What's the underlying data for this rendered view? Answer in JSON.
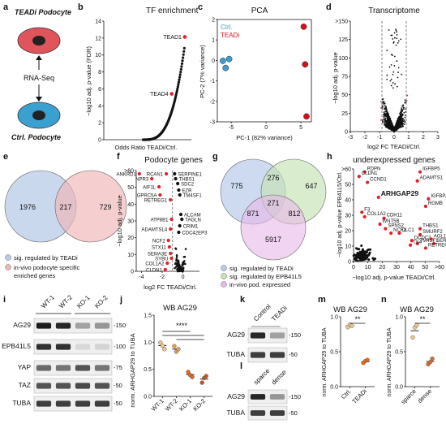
{
  "panels": {
    "a": {
      "letter": "a",
      "top_label": [
        "TEADi Podocyte"
      ],
      "middle_label": "RNA-Seq",
      "bottom_label": [
        "Ctrl. Podocyte"
      ],
      "colors": {
        "teadi": "#e0555c",
        "ctrl": "#3aa0d0",
        "nucleus": "#222222"
      }
    },
    "b": {
      "letter": "b",
      "title": "TF enrichment"
    },
    "c": {
      "letter": "c",
      "title": "PCA"
    },
    "d": {
      "letter": "d",
      "title": "Transcriptome"
    },
    "e": {
      "letter": "e",
      "left_value": "1976",
      "overlap_value": "217",
      "right_value": "729",
      "legend": [
        "sig. regulated by TEADi",
        "in-vivo podocyte specific",
        "enriched genes"
      ],
      "colors": {
        "left": "#b8cbe8",
        "right": "#f0b6b6"
      }
    },
    "f": {
      "letter": "f",
      "title": "Podocyte genes"
    },
    "g": {
      "letter": "g",
      "values": {
        "a_only": "775",
        "ab": "276",
        "b_only": "647",
        "ac": "871",
        "abc": "271",
        "bc": "812",
        "c_only": "5917"
      },
      "legend": [
        "sig. regulated by TEADi",
        "sig. regulated by EPB41L5",
        "in-vivo pod. expressed"
      ],
      "colors": {
        "a": "#b8cbe8",
        "b": "#c6e2b4",
        "c": "#e8b8ea"
      }
    },
    "h": {
      "letter": "h",
      "title": "underexpressed genes"
    },
    "i": {
      "letter": "i",
      "lanes": [
        "WT-1",
        "WT-2",
        "KO-1",
        "KO-2"
      ],
      "blots": [
        {
          "label": "AG29",
          "marker": "-150"
        },
        {
          "label": "EPB41L5",
          "marker": "-100"
        },
        {
          "label": "YAP",
          "marker": "-75"
        },
        {
          "label": "TAZ",
          "marker": "-50"
        },
        {
          "label": "TUBA",
          "marker": "-50"
        }
      ]
    },
    "j": {
      "letter": "j",
      "title": "WB AG29",
      "significance": "****"
    },
    "k": {
      "letter": "k",
      "lanes": [
        "Control",
        "TEADi"
      ],
      "blots": [
        {
          "label": "AG29",
          "marker": "-150"
        },
        {
          "label": "TUBA",
          "marker": "-50"
        }
      ]
    },
    "l": {
      "letter": "l",
      "lanes": [
        "sparce",
        "dense"
      ],
      "blots": [
        {
          "label": "AG29",
          "marker": "-150"
        },
        {
          "label": "TUBA",
          "marker": "-50"
        }
      ]
    },
    "m": {
      "letter": "m",
      "title": "WB AG29",
      "significance": "**"
    },
    "n": {
      "letter": "n",
      "title": "WB AG29",
      "significance": "**"
    }
  },
  "chart_data": [
    {
      "panel": "b",
      "type": "scatter",
      "title": "TF enrichment",
      "xlabel": "Odds Ratio TEADi/Ctrl.",
      "ylabel": "−log10 adj. p-value (FDR)",
      "yticks": [
        "0",
        "2",
        "4",
        "6",
        "8",
        "10",
        "12",
        "14"
      ],
      "ylim": [
        0,
        15
      ],
      "xlim": [
        0,
        2
      ],
      "highlight": [
        {
          "label": "TEAD1",
          "x": 1.85,
          "y": 13.0
        },
        {
          "label": "TEAD4",
          "x": 1.55,
          "y": 5.8
        }
      ],
      "color_highlight": "#e0202a"
    },
    {
      "panel": "c",
      "type": "scatter",
      "title": "PCA",
      "xlabel": "PC-1 (82% variance)",
      "ylabel": "PC-2 (7% variance)",
      "xticks": [
        "-5",
        "0",
        "5"
      ],
      "yticks": [
        "-3",
        "-2",
        "-1",
        "0",
        "1",
        "2"
      ],
      "xlim": [
        -7,
        6.5
      ],
      "ylim": [
        -3.3,
        2.4
      ],
      "legend": [
        "Ctrl.",
        "TEADi"
      ],
      "series": [
        {
          "name": "Ctrl.",
          "color": "#3aa0d0",
          "points": [
            [
              -6.2,
              0.1
            ],
            [
              -5.8,
              -0.3
            ],
            [
              -5.3,
              0.2
            ]
          ]
        },
        {
          "name": "TEADi",
          "color": "#d8101c",
          "points": [
            [
              5.4,
              2.0
            ],
            [
              5.6,
              -0.1
            ],
            [
              5.8,
              -3.0
            ]
          ]
        }
      ]
    },
    {
      "panel": "d",
      "type": "scatter",
      "title": "Transcriptome",
      "xlabel": "log2 FC TEADi/Ctrl.",
      "ylabel": "−log10 adj. p-value",
      "xticks": [
        "-3",
        "-2",
        "-1",
        "0",
        "1",
        "2",
        "3"
      ],
      "yticks": [
        "0",
        "25",
        "50",
        "75",
        "100",
        "125",
        ">150"
      ],
      "xlim": [
        -3.6,
        3.6
      ],
      "ylim": [
        0,
        155
      ],
      "thresholds_x": [
        -1,
        1
      ]
    },
    {
      "panel": "f",
      "type": "scatter",
      "title": "Podocyte genes",
      "xlabel": "log2 FC TEADi/Ctrl.",
      "ylabel": "−log10 adj. p-value",
      "xticks": [
        "-4",
        "-2",
        "0"
      ],
      "yticks": [
        "0",
        "10",
        "20",
        "30",
        "40",
        "50",
        ">60"
      ],
      "xlim": [
        -4.5,
        1.6
      ],
      "ylim": [
        0,
        62
      ],
      "labels": [
        "ANKRD1",
        "NPR3",
        "AIF1L",
        "GPRC5A",
        "RCAN1",
        "SERPINE1",
        "THBS1",
        "SDC2",
        "EZR",
        "TM4SF1",
        "RETREG1",
        "ALCAM",
        "TAGLN",
        "CRIM1",
        "CDC42EP3",
        "ATP8B1",
        "ADAMTSL4",
        "NCF2",
        "STX11",
        "SEMA3E",
        "SYBU",
        "COL1A2",
        "CLDN1"
      ]
    },
    {
      "panel": "h",
      "type": "scatter",
      "title": "underexpressed genes",
      "xlabel": "−log10 adj. p-value TEADi/Ctrl.",
      "ylabel": "−log10 adj. p-value EPB41L5/Ctrl.",
      "xticks": [
        "0",
        "10",
        "20",
        "30",
        "40",
        "50",
        ">60"
      ],
      "yticks": [
        "0",
        "10",
        "20",
        "30",
        "40",
        "50",
        ">60"
      ],
      "xlim": [
        0,
        62
      ],
      "ylim": [
        0,
        62
      ],
      "labels": [
        "PDPN",
        "CLDN1",
        "CCND1",
        "IGFBP5",
        "ADAMTS1",
        "ARHGAP29",
        "IGFBP4",
        "RGMB",
        "F3",
        "COL1A2",
        "CDH11",
        "WNT5B",
        "SPNS2",
        "NCF2",
        "DLC1",
        "THBS1",
        "SMURF2",
        "DCDC2",
        "TM4SF1",
        "AGL1",
        "SERPINE1",
        "TS4",
        "RETREG1"
      ]
    },
    {
      "panel": "j",
      "type": "scatter",
      "title": "WB AG29",
      "ylabel": "norm. ARHGAP29 to TUBA",
      "categories": [
        "WT-1",
        "WT-2",
        "KO-1",
        "KO-2"
      ],
      "yticks": [
        "0.0",
        "0.5",
        "1.0",
        "1.5"
      ],
      "ylim": [
        0,
        1.6
      ],
      "means": [
        1.0,
        0.93,
        0.43,
        0.34
      ],
      "points": [
        [
          1.06,
          1.0,
          0.93
        ],
        [
          0.99,
          0.88,
          0.93
        ],
        [
          0.48,
          0.42,
          0.38
        ],
        [
          0.27,
          0.36,
          0.4
        ]
      ],
      "colors": [
        "#f5c788",
        "#f09a4a",
        "#e06a20",
        "#c8541a"
      ]
    },
    {
      "panel": "m",
      "type": "scatter",
      "title": "WB AG29",
      "ylabel": "norm. ARHGAP29 to TUBA",
      "categories": [
        "Ctrl.",
        "TEADi"
      ],
      "yticks": [
        "0.0",
        "0.5",
        "1.0"
      ],
      "ylim": [
        0,
        1.15
      ],
      "means": [
        1.0,
        0.41
      ],
      "points": [
        [
          0.98,
          1.02,
          1.0
        ],
        [
          0.39,
          0.42,
          0.44
        ]
      ],
      "colors": [
        "#f5c788",
        "#e06a20"
      ]
    },
    {
      "panel": "n",
      "type": "scatter",
      "title": "WB AG29",
      "ylabel": "norm. ARHGAP29 to TUBA",
      "categories": [
        "sparce",
        "dense"
      ],
      "yticks": [
        "0.0",
        "0.5",
        "1.0"
      ],
      "ylim": [
        0,
        1.25
      ],
      "means": [
        1.0,
        0.45
      ],
      "points": [
        [
          0.88,
          1.06,
          1.1
        ],
        [
          0.4,
          0.44,
          0.5
        ]
      ],
      "colors": [
        "#f5c788",
        "#e06a20"
      ]
    }
  ]
}
